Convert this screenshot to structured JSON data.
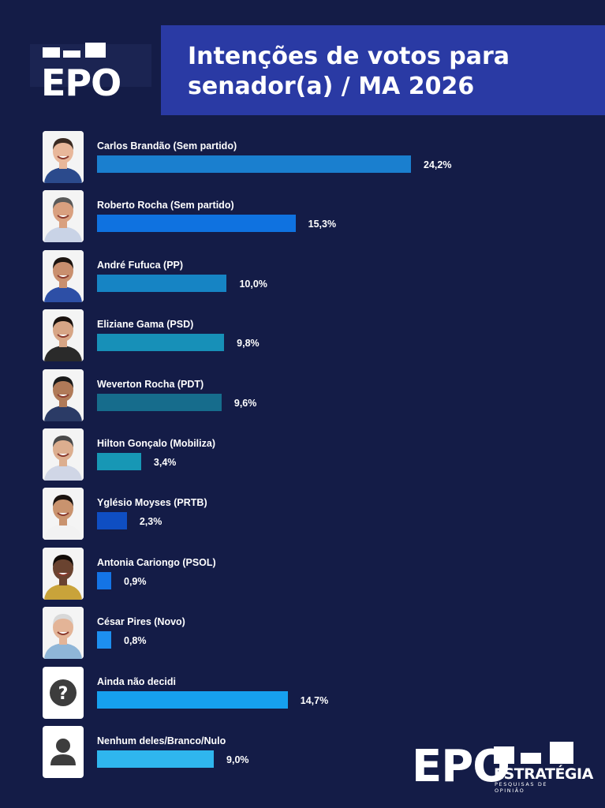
{
  "logo": {
    "text": "EPO"
  },
  "title": {
    "line1": "Intenções de votos para",
    "line2": "senador(a) / MA 2026"
  },
  "chart_data": {
    "type": "bar",
    "orientation": "horizontal",
    "categories": [
      "Carlos Brandão (Sem partido)",
      "Roberto Rocha (Sem partido)",
      "André Fufuca (PP)",
      "Eliziane Gama (PSD)",
      "Weverton Rocha (PDT)",
      "Hilton Gonçalo (Mobiliza)",
      "Yglésio Moyses (PRTB)",
      "Antonia Cariongo (PSOL)",
      "César Pires (Novo)",
      "Ainda não decidi",
      "Nenhum deles/Branco/Nulo"
    ],
    "values": [
      24.2,
      15.3,
      10.0,
      9.8,
      9.6,
      3.4,
      2.3,
      0.9,
      0.8,
      14.7,
      9.0
    ],
    "value_labels": [
      "24,2%",
      "15,3%",
      "10,0%",
      "9,8%",
      "9,6%",
      "3,4%",
      "2,3%",
      "0,9%",
      "0,8%",
      "14,7%",
      "9,0%"
    ],
    "bar_colors": [
      "#1a7fcf",
      "#0f72e0",
      "#1684c4",
      "#1790b8",
      "#166c8c",
      "#1797b5",
      "#0f4ec2",
      "#1474e6",
      "#1d8ff0",
      "#16a0ef",
      "#2fb6ee"
    ],
    "icons": [
      "photo",
      "photo",
      "photo",
      "photo",
      "photo",
      "photo",
      "photo",
      "photo",
      "photo",
      "question-icon",
      "person-icon"
    ],
    "xlim": [
      0,
      25
    ],
    "title": "Intenções de votos para senador(a) / MA 2026"
  },
  "footer_logo": {
    "text": "EPO",
    "line1": "ESTRATÉGIA",
    "line2": "PESQUISAS DE OPINIÃO"
  }
}
